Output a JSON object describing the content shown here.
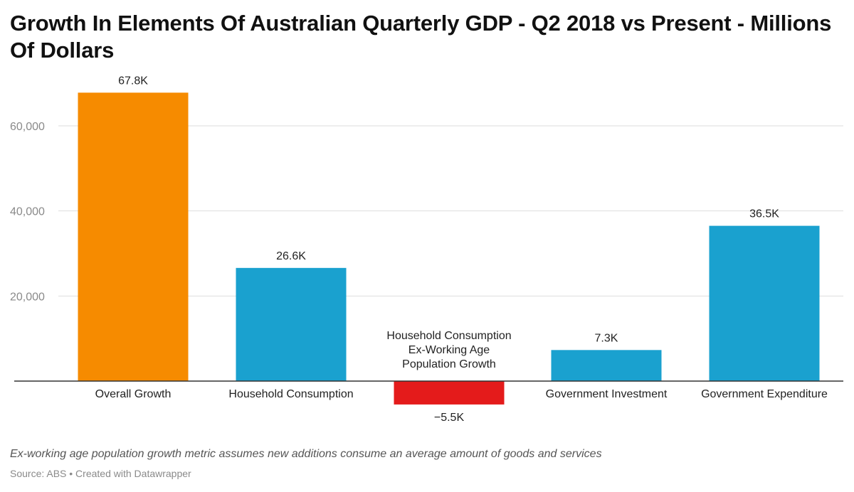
{
  "chart_data": {
    "type": "bar",
    "title": "Growth In Elements Of Australian Quarterly GDP - Q2 2018 vs Present - Millions Of Dollars",
    "categories": [
      "Overall Growth",
      "Household Consumption",
      "Household Consumption Ex-Working Age Population Growth",
      "Government Investment",
      "Government Expenditure"
    ],
    "values": [
      67800,
      26600,
      -5500,
      7300,
      36500
    ],
    "value_labels": [
      "67.8K",
      "26.6K",
      "−5.5K",
      "7.3K",
      "36.5K"
    ],
    "bar_colors": [
      "#f68b00",
      "#1aa1cf",
      "#e41b1b",
      "#1aa1cf",
      "#1aa1cf"
    ],
    "y_ticks": [
      20000,
      40000,
      60000
    ],
    "y_tick_labels": [
      "20,000",
      "40,000",
      "60,000"
    ],
    "ylim": [
      -5500,
      72000
    ],
    "xlabel": "",
    "ylabel": "",
    "grid": true,
    "legend": "none"
  },
  "notes": "Ex-working age population growth metric assumes new additions consume an average amount of goods and services",
  "source": "Source: ABS • Created with Datawrapper",
  "colors": {
    "gridline": "#dddddd",
    "baseline": "#333333"
  }
}
